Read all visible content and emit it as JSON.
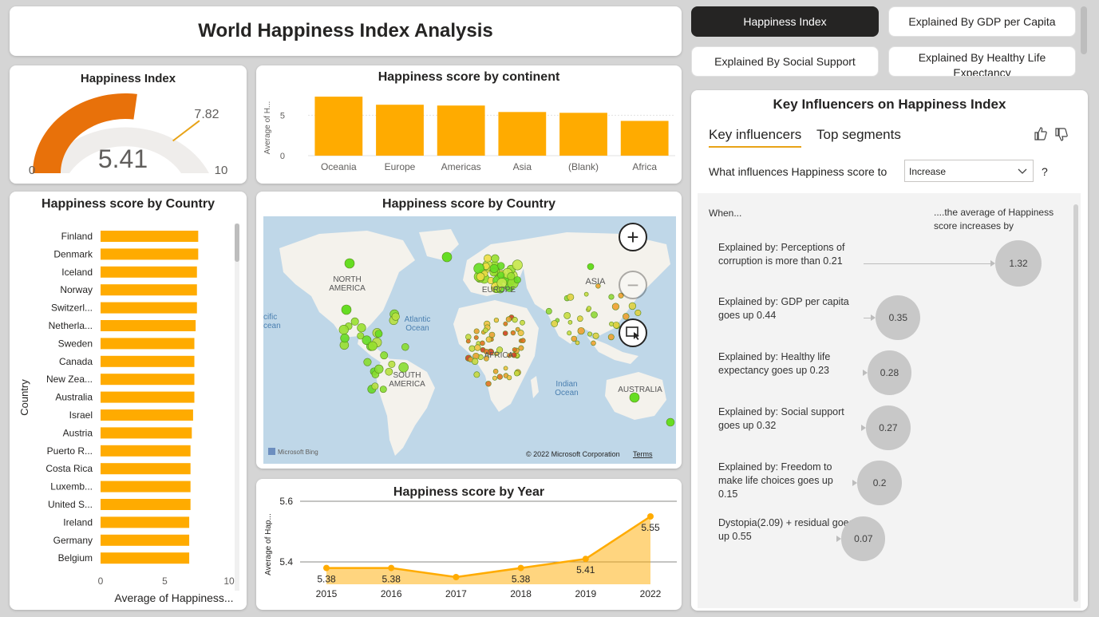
{
  "header": {
    "title": "World Happiness Index Analysis"
  },
  "nav": {
    "buttons": [
      "Happiness Index",
      "Explained By GDP per Capita",
      "Explained By Social Support",
      "Explained By Healthy Life Expectancy"
    ],
    "active": 0
  },
  "gauge": {
    "title": "Happiness Index",
    "value": 5.41,
    "value_label": "5.41",
    "min_label": "0",
    "max_label": "10",
    "target_label": "7.82",
    "min": 0,
    "max": 10,
    "target": 7.82,
    "fill_color": "#e8710a"
  },
  "continent_chart": {
    "chart_data": {
      "type": "bar",
      "title": "Happiness score by continent",
      "ylabel": "Average of H...",
      "categories": [
        "Oceania",
        "Europe",
        "Americas",
        "Asia",
        "(Blank)",
        "Africa"
      ],
      "values": [
        7.3,
        6.3,
        6.2,
        5.4,
        5.3,
        4.3
      ],
      "ylim": [
        0,
        8
      ],
      "yticks": [
        "0",
        "5"
      ],
      "color": "#ffab00"
    }
  },
  "country_chart": {
    "chart_data": {
      "type": "bar",
      "orientation": "horizontal",
      "title": "Happiness score by Country",
      "ylabel": "Country",
      "xlabel": "Average of Happiness...",
      "categories": [
        "Finland",
        "Denmark",
        "Iceland",
        "Norway",
        "Switzerl...",
        "Netherla...",
        "Sweden",
        "Canada",
        "New Zea...",
        "Australia",
        "Israel",
        "Austria",
        "Puerto R...",
        "Costa Rica",
        "Luxemb...",
        "United S...",
        "Ireland",
        "Germany",
        "Belgium"
      ],
      "values": [
        7.6,
        7.6,
        7.5,
        7.5,
        7.5,
        7.4,
        7.3,
        7.3,
        7.3,
        7.3,
        7.2,
        7.1,
        7.0,
        7.0,
        7.0,
        7.0,
        6.9,
        6.9,
        6.9
      ],
      "xlim": [
        0,
        10
      ],
      "xticks": [
        "0",
        "5",
        "10"
      ],
      "color": "#ffab00"
    }
  },
  "map": {
    "title": "Happiness score by Country",
    "labels": {
      "na": "NORTH\nAMERICA",
      "sa": "SOUTH\nAMERICA",
      "eu": "EUROPE",
      "af": "AFRICA",
      "as": "ASIA",
      "au": "AUSTRALIA",
      "atl": "Atlantic\nOcean",
      "ind": "Indian\nOcean",
      "pac": "cific\ncean"
    },
    "bing": "Microsoft Bing",
    "copyright": "© 2022 Microsoft Corporation",
    "terms": "Terms"
  },
  "year_chart": {
    "chart_data": {
      "type": "area",
      "title": "Happiness score by Year",
      "ylabel": "Average of Hap...",
      "x": [
        "2015",
        "2016",
        "2017",
        "2018",
        "2019",
        "2022"
      ],
      "values": [
        5.38,
        5.38,
        5.35,
        5.38,
        5.41,
        5.55
      ],
      "data_labels": [
        "5.38",
        "5.38",
        "",
        "5.38",
        "5.41",
        "5.55"
      ],
      "ylim": [
        5.3,
        5.6
      ],
      "yticks": [
        "5.4",
        "5.6"
      ],
      "color": "#ffab00"
    }
  },
  "key_influencers": {
    "title": "Key Influencers on Happiness Index",
    "tabs": [
      "Key influencers",
      "Top segments"
    ],
    "question": "What influences Happiness score to",
    "select_value": "Increase",
    "help": "?",
    "col_when": "When...",
    "col_avg": "....the average of Happiness score increases by",
    "rows": [
      {
        "label": "Explained by: Perceptions of corruption is more than 0.21",
        "value": "1.32"
      },
      {
        "label": "Explained by: GDP per capita goes up 0.44",
        "value": "0.35"
      },
      {
        "label": "Explained by: Healthy life expectancy goes up 0.23",
        "value": "0.28"
      },
      {
        "label": "Explained by: Social support goes up 0.32",
        "value": "0.27"
      },
      {
        "label": "Explained by: Freedom to make life choices goes up 0.15",
        "value": "0.2"
      },
      {
        "label": "Dystopia(2.09) + residual goes up 0.55",
        "value": "0.07"
      }
    ]
  }
}
